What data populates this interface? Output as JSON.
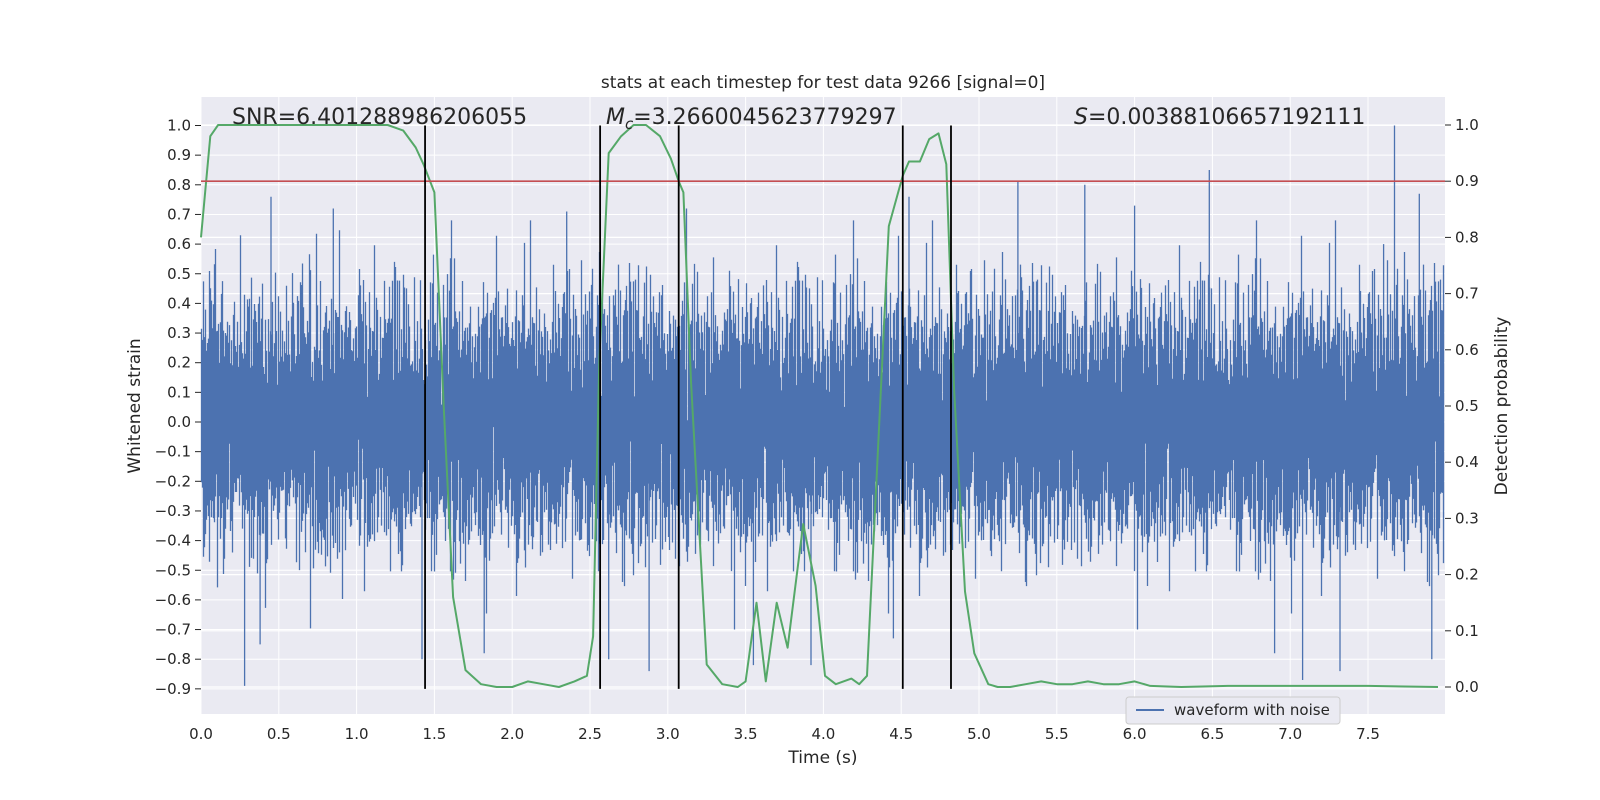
{
  "chart_data": {
    "type": "line",
    "title": "stats at each timestep for test data 9266 [signal=0]",
    "xlabel": "Time (s)",
    "ylabel": "Whitened strain",
    "y2label": "Detection probability",
    "xlim": [
      0.0,
      8.0
    ],
    "ylim": [
      -0.99,
      1.09
    ],
    "y2lim": [
      -0.048,
      1.048
    ],
    "xticks": [
      "0.0",
      "0.5",
      "1.0",
      "1.5",
      "2.0",
      "2.5",
      "3.0",
      "3.5",
      "4.0",
      "4.5",
      "5.0",
      "5.5",
      "6.0",
      "6.5",
      "7.0",
      "7.5"
    ],
    "yticks": [
      "1.0",
      "0.9",
      "0.8",
      "0.7",
      "0.6",
      "0.5",
      "0.4",
      "0.3",
      "0.2",
      "0.1",
      "0.0",
      "−0.1",
      "−0.2",
      "−0.3",
      "−0.4",
      "−0.5",
      "−0.6",
      "−0.7",
      "−0.8",
      "−0.9"
    ],
    "y2ticks": [
      "1.0",
      "0.9",
      "0.8",
      "0.7",
      "0.6",
      "0.5",
      "0.4",
      "0.3",
      "0.2",
      "0.1",
      "0.0"
    ],
    "grid": true,
    "legend_placement": "lower-right",
    "annotations": {
      "snr": "SNR=6.401288986206055",
      "mc_symbol": "M",
      "mc_subscript": "c",
      "mc_value": "=3.2660045623779297",
      "s_symbol": "S",
      "s_value": "=0.00388106657192111"
    },
    "colors": {
      "background": "#eaeaf2",
      "grid": "#ffffff",
      "waveform": "#4c72b0",
      "probability": "#55a868",
      "threshold": "#c44e52",
      "boundary": "#000000"
    },
    "series": [
      {
        "name": "waveform with noise",
        "axis": "left",
        "style": "dense-noise",
        "samples_per_second": 2048,
        "noise_sigma": 0.19,
        "envelope_peaks": [
          [
            0.28,
            -0.89
          ],
          [
            0.38,
            -0.75
          ],
          [
            0.45,
            0.76
          ],
          [
            0.85,
            0.72
          ],
          [
            1.42,
            -0.8
          ],
          [
            1.82,
            -0.78
          ],
          [
            2.35,
            0.71
          ],
          [
            2.62,
            -0.8
          ],
          [
            2.88,
            -0.84
          ],
          [
            3.12,
            0.72
          ],
          [
            3.55,
            -0.82
          ],
          [
            3.92,
            -0.82
          ],
          [
            4.45,
            -0.73
          ],
          [
            4.55,
            0.76
          ],
          [
            5.25,
            0.81
          ],
          [
            5.68,
            0.8
          ],
          [
            6.0,
            0.73
          ],
          [
            6.48,
            0.85
          ],
          [
            6.9,
            -0.78
          ],
          [
            7.08,
            -0.87
          ],
          [
            7.32,
            -0.84
          ],
          [
            7.6,
            0.6
          ],
          [
            7.67,
            1.0
          ],
          [
            7.83,
            0.77
          ],
          [
            7.91,
            -0.8
          ]
        ]
      },
      {
        "name": "detection probability",
        "axis": "right",
        "style": "line",
        "x": [
          0.0,
          0.06,
          0.11,
          0.2,
          0.5,
          0.8,
          1.0,
          1.2,
          1.3,
          1.38,
          1.43,
          1.5,
          1.56,
          1.62,
          1.7,
          1.8,
          1.9,
          2.0,
          2.1,
          2.2,
          2.3,
          2.4,
          2.48,
          2.52,
          2.56,
          2.62,
          2.7,
          2.78,
          2.86,
          2.95,
          3.02,
          3.07,
          3.1,
          3.15,
          3.25,
          3.35,
          3.45,
          3.5,
          3.57,
          3.63,
          3.7,
          3.77,
          3.82,
          3.87,
          3.95,
          4.01,
          4.08,
          4.18,
          4.23,
          4.28,
          4.35,
          4.42,
          4.51,
          4.55,
          4.62,
          4.68,
          4.74,
          4.79,
          4.84,
          4.91,
          4.97,
          5.06,
          5.12,
          5.2,
          5.3,
          5.4,
          5.5,
          5.6,
          5.7,
          5.8,
          5.9,
          6.0,
          6.1,
          6.3,
          6.6,
          6.9,
          7.2,
          7.5,
          7.95
        ],
        "y": [
          0.8,
          0.98,
          1.0,
          1.0,
          1.0,
          1.0,
          1.0,
          1.0,
          0.99,
          0.96,
          0.93,
          0.88,
          0.5,
          0.16,
          0.03,
          0.005,
          0.0,
          0.0,
          0.01,
          0.005,
          0.0,
          0.01,
          0.02,
          0.09,
          0.58,
          0.95,
          0.98,
          1.0,
          1.0,
          0.98,
          0.94,
          0.9,
          0.88,
          0.54,
          0.04,
          0.005,
          0.0,
          0.01,
          0.15,
          0.01,
          0.15,
          0.07,
          0.18,
          0.29,
          0.18,
          0.02,
          0.005,
          0.015,
          0.005,
          0.02,
          0.42,
          0.82,
          0.91,
          0.935,
          0.935,
          0.975,
          0.985,
          0.93,
          0.53,
          0.17,
          0.06,
          0.005,
          0.0,
          0.0,
          0.005,
          0.01,
          0.005,
          0.005,
          0.01,
          0.005,
          0.005,
          0.01,
          0.002,
          0.0,
          0.002,
          0.002,
          0.002,
          0.002,
          0.0
        ]
      }
    ],
    "threshold_line": {
      "axis": "right",
      "y": 0.9
    },
    "boundary_lines": {
      "axis": "left",
      "ymin": -0.9,
      "ymax": 1.0,
      "x": [
        1.44,
        2.565,
        3.07,
        4.51,
        4.82
      ]
    },
    "legend": {
      "label": "waveform with noise"
    }
  }
}
